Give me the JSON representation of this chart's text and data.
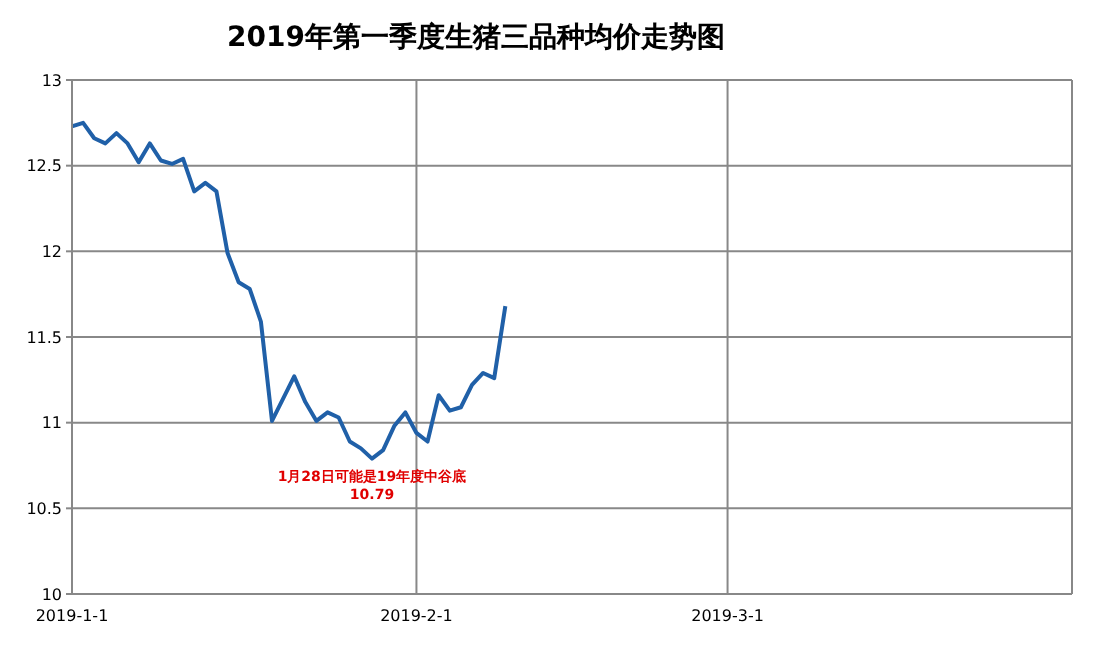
{
  "chart_data": {
    "type": "line",
    "title": "2019年第一季度生猪三品种均价走势图",
    "x": [
      "2019-01-01",
      "2019-01-02",
      "2019-01-03",
      "2019-01-04",
      "2019-01-05",
      "2019-01-06",
      "2019-01-07",
      "2019-01-08",
      "2019-01-09",
      "2019-01-10",
      "2019-01-11",
      "2019-01-12",
      "2019-01-13",
      "2019-01-14",
      "2019-01-15",
      "2019-01-16",
      "2019-01-17",
      "2019-01-18",
      "2019-01-19",
      "2019-01-20",
      "2019-01-21",
      "2019-01-22",
      "2019-01-23",
      "2019-01-24",
      "2019-01-25",
      "2019-01-26",
      "2019-01-27",
      "2019-01-28",
      "2019-01-29",
      "2019-01-30",
      "2019-01-31",
      "2019-02-01",
      "2019-02-02",
      "2019-02-03",
      "2019-02-04",
      "2019-02-05",
      "2019-02-06",
      "2019-02-07",
      "2019-02-08",
      "2019-02-09"
    ],
    "series": [
      {
        "color": "#2060a8",
        "values": [
          12.73,
          12.75,
          12.66,
          12.63,
          12.69,
          12.63,
          12.52,
          12.63,
          12.53,
          12.51,
          12.54,
          12.35,
          12.4,
          12.35,
          11.99,
          11.82,
          11.78,
          11.59,
          11.01,
          11.14,
          11.27,
          11.12,
          11.01,
          11.06,
          11.03,
          10.89,
          10.85,
          10.79,
          10.84,
          10.98,
          11.06,
          10.94,
          10.89,
          11.16,
          11.07,
          11.09,
          11.22,
          11.29,
          11.26,
          11.68
        ]
      }
    ],
    "xlim": [
      "2019-01-01",
      "2019-04-01"
    ],
    "xticks": [
      {
        "value": "2019-01-01",
        "label": "2019-1-1"
      },
      {
        "value": "2019-02-01",
        "label": "2019-2-1"
      },
      {
        "value": "2019-03-01",
        "label": "2019-3-1"
      }
    ],
    "ylim": [
      10,
      13
    ],
    "yticks": [
      10,
      10.5,
      11,
      11.5,
      12,
      12.5,
      13
    ],
    "grid": true,
    "marker": "none",
    "line_style": "solid",
    "annotations": [
      {
        "text": "1月28日可能是19年度中谷底",
        "x": "2019-01-28",
        "y": 10.79
      },
      {
        "text": "10.79",
        "x": "2019-01-28",
        "y": 10.79
      }
    ]
  }
}
